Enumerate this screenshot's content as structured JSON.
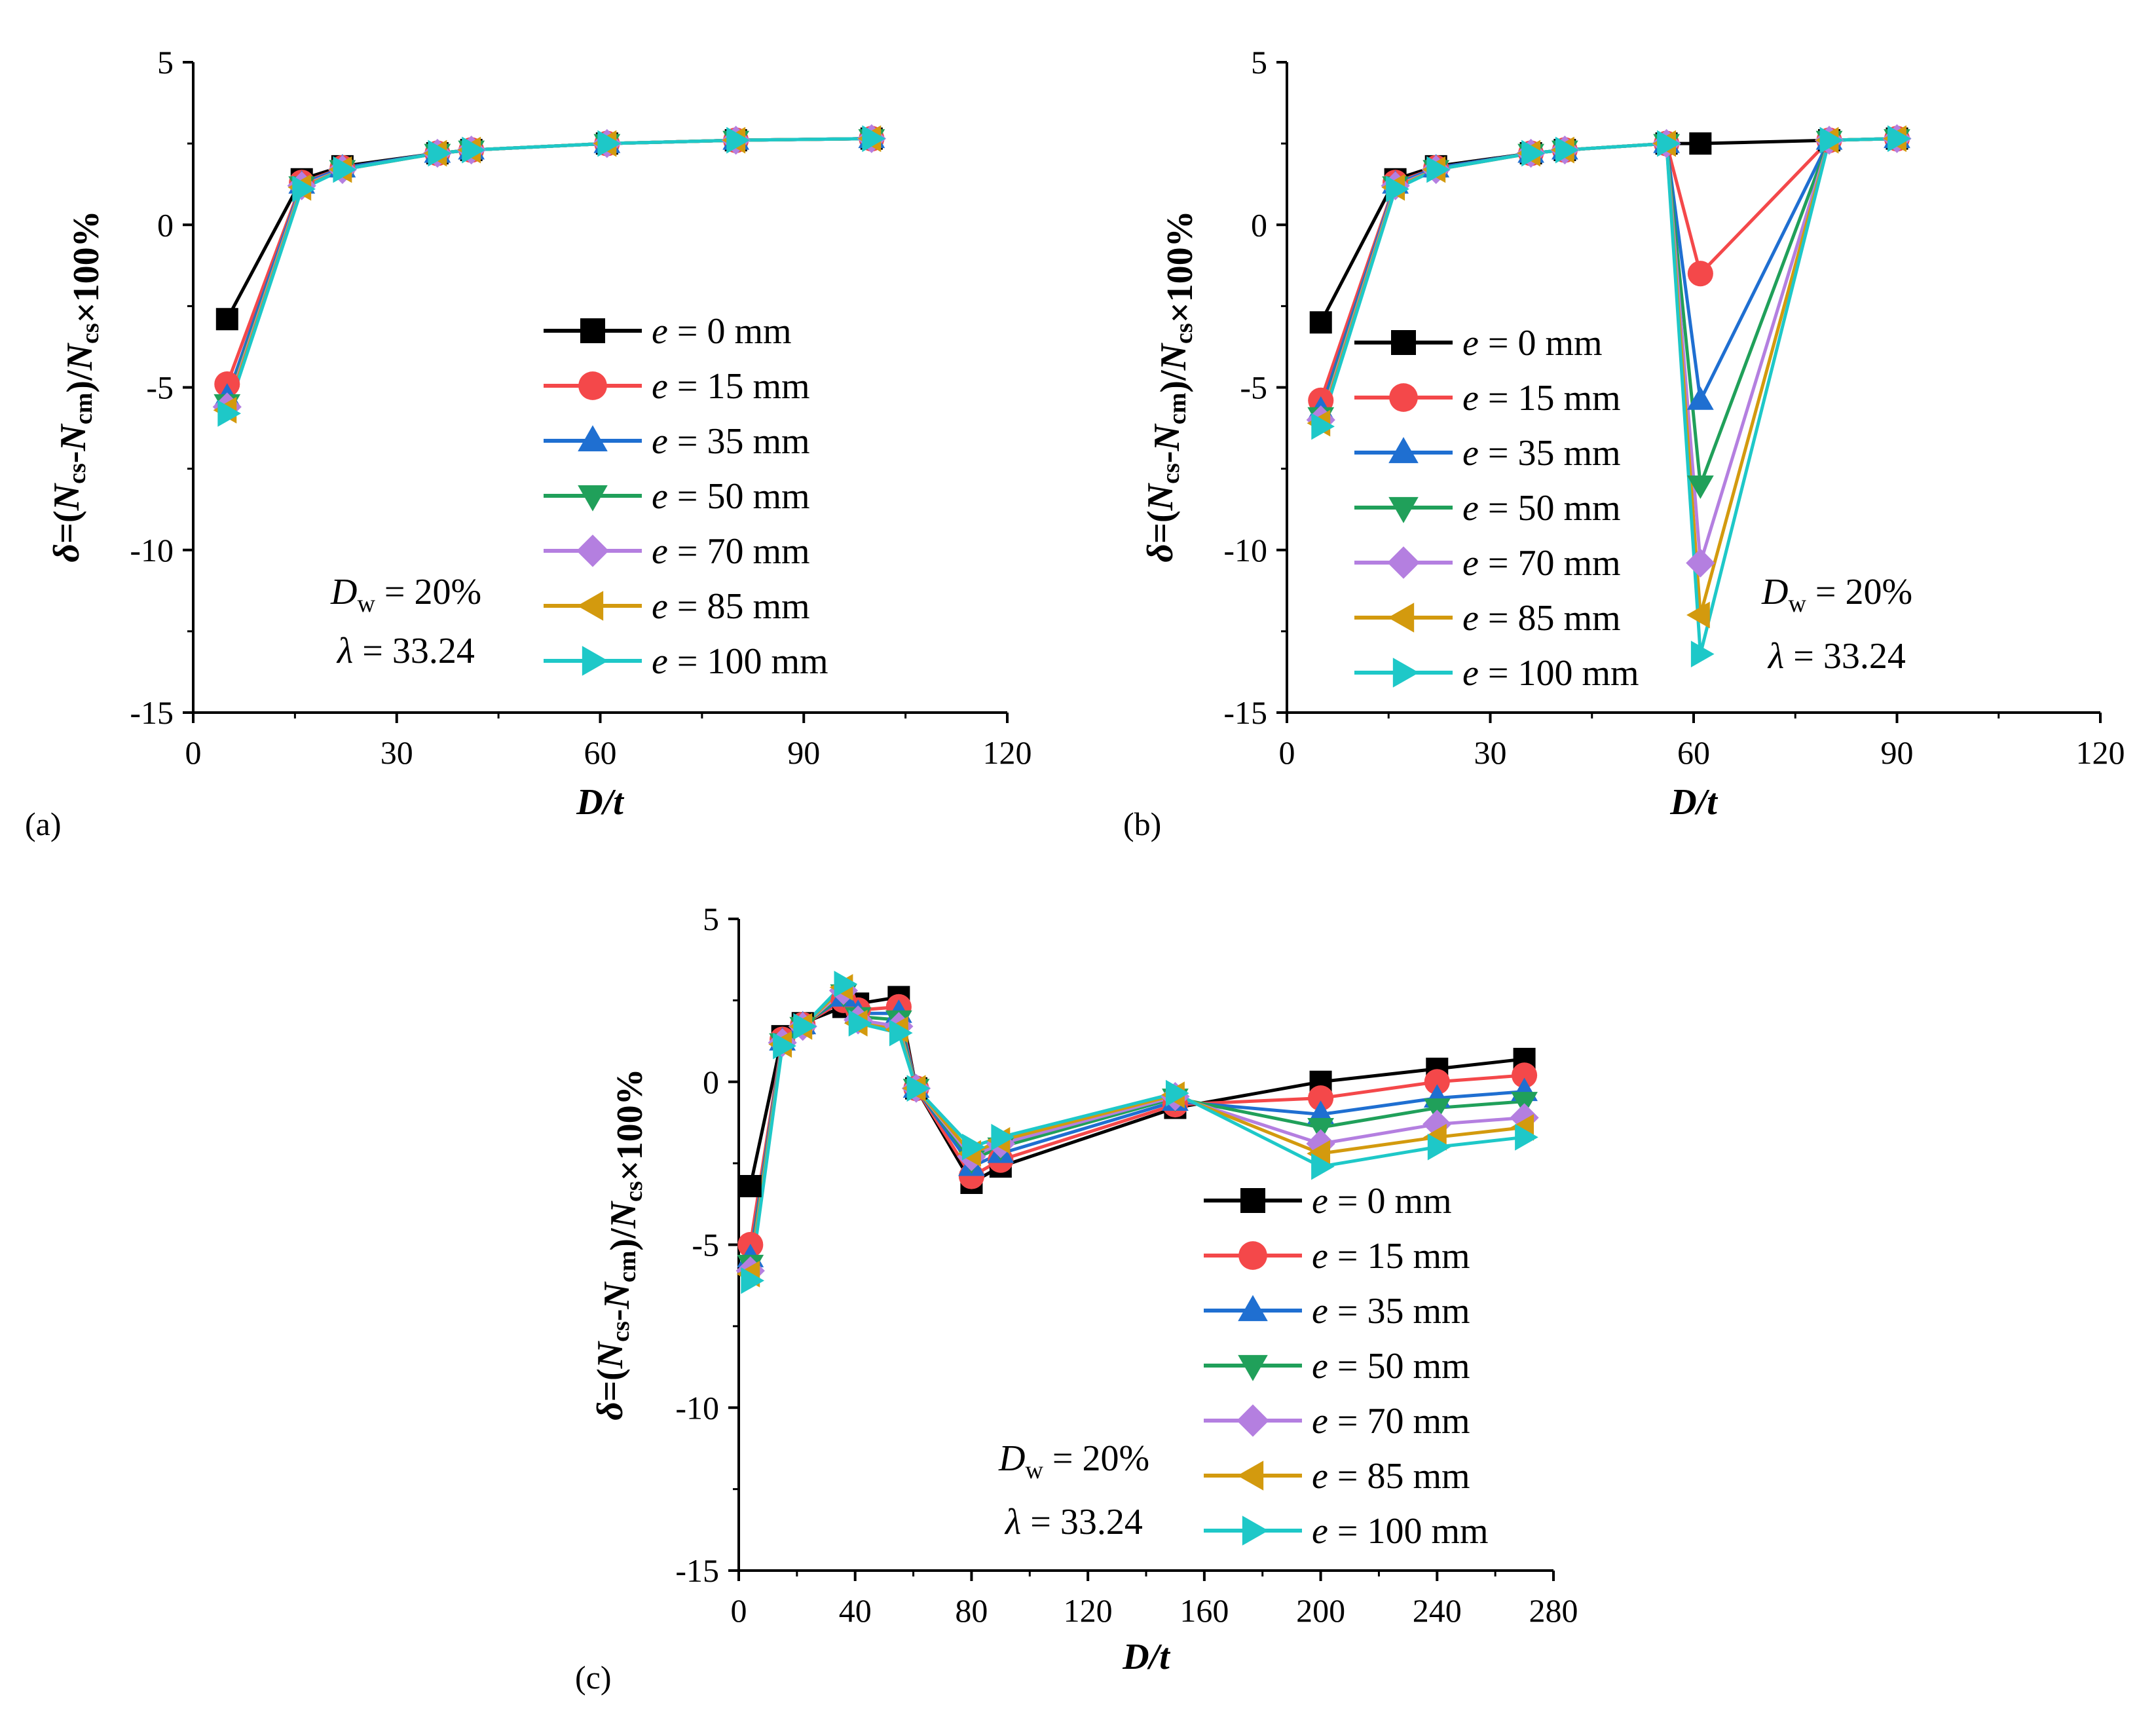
{
  "figure": {
    "panel_labels": [
      "(a)",
      "(b)",
      "(c)"
    ],
    "y_axis_title": "δ=(Ncs-Ncm)/Ncs×100%",
    "x_axis_title": "D/t",
    "annotations": {
      "dw": "Dw = 20%",
      "lambda": "λ = 33.24"
    },
    "series_colors": [
      "#000000",
      "#f4484a",
      "#1f6fd1",
      "#20a05a",
      "#b47fe0",
      "#d39a0e",
      "#1ec8c8"
    ],
    "series_markers": [
      "square",
      "circle",
      "triangle-up",
      "triangle-down",
      "diamond",
      "triangle-left",
      "triangle-right"
    ]
  },
  "chart_data": [
    {
      "type": "line",
      "panel": "(a)",
      "title": "",
      "xlabel": "D/t",
      "ylabel": "δ=(Ncs-Ncm)/Ncs×100%",
      "xlim": [
        0,
        120
      ],
      "ylim": [
        -15,
        5
      ],
      "xticks": [
        "0",
        "30",
        "60",
        "90",
        "120"
      ],
      "yticks": [
        "5",
        "0",
        "-5",
        "-10",
        "-15"
      ],
      "x": [
        5,
        16,
        22,
        36,
        41,
        61,
        80,
        100
      ],
      "legend": [
        "e = 0 mm",
        "e = 15 mm",
        "e = 35 mm",
        "e = 50 mm",
        "e = 70 mm",
        "e = 85 mm",
        "e = 100 mm"
      ],
      "annotations": [
        "Dw = 20%",
        "λ = 33.24"
      ],
      "series": [
        {
          "name": "e = 0 mm",
          "values": [
            -2.9,
            1.4,
            1.8,
            2.2,
            2.3,
            2.5,
            2.6,
            2.65
          ]
        },
        {
          "name": "e = 15 mm",
          "values": [
            -4.9,
            1.3,
            1.75,
            2.2,
            2.3,
            2.5,
            2.6,
            2.65
          ]
        },
        {
          "name": "e = 35 mm",
          "values": [
            -5.3,
            1.25,
            1.75,
            2.2,
            2.3,
            2.5,
            2.6,
            2.65
          ]
        },
        {
          "name": "e = 50 mm",
          "values": [
            -5.5,
            1.2,
            1.7,
            2.2,
            2.3,
            2.5,
            2.6,
            2.65
          ]
        },
        {
          "name": "e = 70 mm",
          "values": [
            -5.6,
            1.2,
            1.7,
            2.2,
            2.3,
            2.5,
            2.6,
            2.65
          ]
        },
        {
          "name": "e = 85 mm",
          "values": [
            -5.7,
            1.15,
            1.7,
            2.2,
            2.3,
            2.5,
            2.6,
            2.65
          ]
        },
        {
          "name": "e = 100 mm",
          "values": [
            -5.8,
            1.1,
            1.7,
            2.2,
            2.3,
            2.5,
            2.6,
            2.65
          ]
        }
      ]
    },
    {
      "type": "line",
      "panel": "(b)",
      "title": "",
      "xlabel": "D/t",
      "ylabel": "δ=(Ncs-Ncm)/Ncs×100%",
      "xlim": [
        0,
        120
      ],
      "ylim": [
        -15,
        5
      ],
      "xticks": [
        "0",
        "30",
        "60",
        "90",
        "120"
      ],
      "yticks": [
        "5",
        "0",
        "-5",
        "-10",
        "-15"
      ],
      "x": [
        5,
        16,
        22,
        36,
        41,
        56,
        61,
        80,
        90
      ],
      "legend": [
        "e = 0 mm",
        "e = 15 mm",
        "e = 35 mm",
        "e = 50 mm",
        "e = 70 mm",
        "e = 85 mm",
        "e = 100 mm"
      ],
      "annotations": [
        "Dw = 20%",
        "λ = 33.24"
      ],
      "series": [
        {
          "name": "e = 0 mm",
          "values": [
            -3.0,
            1.4,
            1.8,
            2.2,
            2.3,
            2.5,
            2.5,
            2.6,
            2.65
          ]
        },
        {
          "name": "e = 15 mm",
          "values": [
            -5.4,
            1.3,
            1.75,
            2.2,
            2.3,
            2.5,
            -1.5,
            2.6,
            2.65
          ]
        },
        {
          "name": "e = 35 mm",
          "values": [
            -5.7,
            1.25,
            1.75,
            2.2,
            2.3,
            2.5,
            -5.4,
            2.6,
            2.65
          ]
        },
        {
          "name": "e = 50 mm",
          "values": [
            -5.9,
            1.2,
            1.7,
            2.2,
            2.3,
            2.5,
            -8.0,
            2.6,
            2.65
          ]
        },
        {
          "name": "e = 70 mm",
          "values": [
            -6.0,
            1.2,
            1.7,
            2.2,
            2.3,
            2.5,
            -10.4,
            2.6,
            2.65
          ]
        },
        {
          "name": "e = 85 mm",
          "values": [
            -6.1,
            1.15,
            1.7,
            2.2,
            2.3,
            2.5,
            -12.0,
            2.6,
            2.65
          ]
        },
        {
          "name": "e = 100 mm",
          "values": [
            -6.2,
            1.1,
            1.7,
            2.2,
            2.3,
            2.5,
            -13.2,
            2.6,
            2.65
          ]
        }
      ]
    },
    {
      "type": "line",
      "panel": "(c)",
      "title": "",
      "xlabel": "D/t",
      "ylabel": "δ=(Ncs-Ncm)/Ncs×100%",
      "xlim": [
        0,
        280
      ],
      "ylim": [
        -15,
        5
      ],
      "xticks": [
        "0",
        "40",
        "80",
        "120",
        "160",
        "200",
        "240",
        "280"
      ],
      "yticks": [
        "5",
        "0",
        "-5",
        "-10",
        "-15"
      ],
      "x": [
        4,
        15,
        22,
        36,
        41,
        55,
        61,
        80,
        90,
        150,
        200,
        240,
        270
      ],
      "legend": [
        "e = 0 mm",
        "e = 15 mm",
        "e = 35 mm",
        "e = 50 mm",
        "e = 70 mm",
        "e = 85 mm",
        "e = 100 mm"
      ],
      "annotations": [
        "Dw = 20%",
        "λ = 33.24"
      ],
      "series": [
        {
          "name": "e = 0 mm",
          "values": [
            -3.2,
            1.4,
            1.8,
            2.3,
            2.4,
            2.6,
            -0.2,
            -3.1,
            -2.6,
            -0.8,
            0.0,
            0.4,
            0.7
          ]
        },
        {
          "name": "e = 15 mm",
          "values": [
            -5.0,
            1.3,
            1.75,
            2.5,
            2.2,
            2.3,
            -0.2,
            -2.9,
            -2.4,
            -0.7,
            -0.5,
            0.0,
            0.2
          ]
        },
        {
          "name": "e = 35 mm",
          "values": [
            -5.4,
            1.25,
            1.75,
            2.6,
            2.1,
            2.1,
            -0.2,
            -2.6,
            -2.2,
            -0.6,
            -1.0,
            -0.5,
            -0.3
          ]
        },
        {
          "name": "e = 50 mm",
          "values": [
            -5.6,
            1.2,
            1.7,
            2.7,
            2.0,
            1.9,
            -0.2,
            -2.4,
            -2.0,
            -0.5,
            -1.4,
            -0.8,
            -0.6
          ]
        },
        {
          "name": "e = 70 mm",
          "values": [
            -5.8,
            1.2,
            1.7,
            2.8,
            1.9,
            1.7,
            -0.2,
            -2.3,
            -1.9,
            -0.45,
            -1.9,
            -1.3,
            -1.1
          ]
        },
        {
          "name": "e = 85 mm",
          "values": [
            -5.9,
            1.15,
            1.7,
            2.9,
            1.8,
            1.6,
            -0.2,
            -2.2,
            -1.8,
            -0.4,
            -2.2,
            -1.7,
            -1.4
          ]
        },
        {
          "name": "e = 100 mm",
          "values": [
            -6.1,
            1.1,
            1.7,
            3.0,
            1.8,
            1.5,
            -0.2,
            -2.0,
            -1.7,
            -0.35,
            -2.6,
            -2.0,
            -1.7
          ]
        }
      ]
    }
  ]
}
